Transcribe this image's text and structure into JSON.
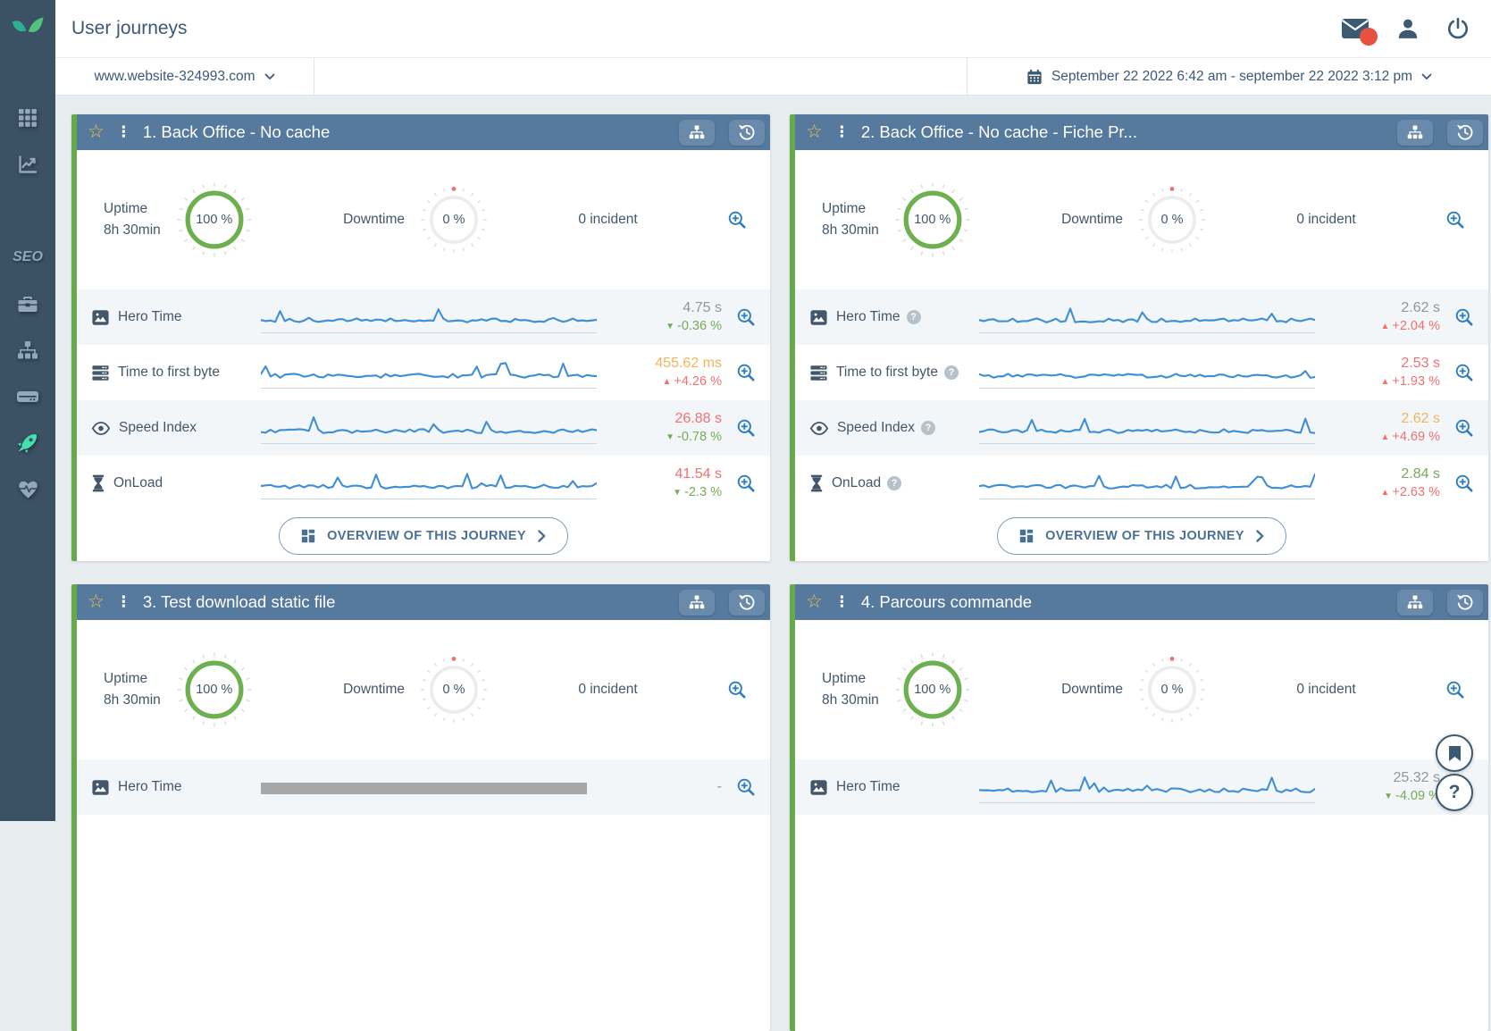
{
  "header": {
    "title": "User journeys",
    "icons": [
      {
        "name": "mail-icon",
        "badge": true
      },
      {
        "name": "user-icon"
      },
      {
        "name": "power-icon"
      }
    ]
  },
  "toolbar": {
    "site_selector": {
      "value": "www.website-324993.com",
      "icon": "chevron-down-icon"
    },
    "date_range": {
      "value": "September 22 2022 6:42 am - september 22 2022 3:12 pm",
      "icon": "calendar-icon"
    }
  },
  "sidebar": {
    "items": [
      {
        "id": "dashboard",
        "icon": "grid-icon"
      },
      {
        "id": "analytics",
        "icon": "line-chart-icon"
      },
      {
        "id": "seo",
        "label": "SEO"
      },
      {
        "id": "tools",
        "icon": "briefcase-icon"
      },
      {
        "id": "pages",
        "icon": "sitemap-icon"
      },
      {
        "id": "server",
        "icon": "server-icon"
      },
      {
        "id": "user-journeys",
        "icon": "rocket-icon",
        "active": true
      },
      {
        "id": "health",
        "icon": "heartbeat-icon"
      }
    ]
  },
  "colors": {
    "accent_green": "#68a94e",
    "card_header_blue": "#56799e",
    "spark_blue": "#3f8fd6",
    "value_gray": "#8f979c",
    "value_orange": "#f2b45c",
    "value_red": "#f17070",
    "value_green": "#74ab58",
    "sidebar_active_teal": "#45e0b0",
    "badge_red": "#e8503f"
  },
  "cards": [
    {
      "title": "1. Back Office - No cache",
      "uptime": {
        "label": "Uptime",
        "duration": "8h 30min",
        "value": "100 %"
      },
      "downtime": {
        "label": "Downtime",
        "value": "0 %"
      },
      "incidents": "0 incident",
      "overview_label": "OVERVIEW OF THIS JOURNEY",
      "metrics": [
        {
          "label": "Hero Time",
          "icon": "image-icon",
          "chart": "line",
          "value": "4.75 s",
          "value_color": "gray",
          "delta_arrow": "▼",
          "delta": "-0.36 %",
          "delta_color": "green"
        },
        {
          "label": "Time to first byte",
          "icon": "server-rows-icon",
          "chart": "line",
          "value": "455.62 ms",
          "value_color": "orange",
          "delta_arrow": "▲",
          "delta": "+4.26 %",
          "delta_color": "red"
        },
        {
          "label": "Speed Index",
          "icon": "eye-icon",
          "chart": "line",
          "value": "26.88 s",
          "value_color": "red",
          "delta_arrow": "▼",
          "delta": "-0.78 %",
          "delta_color": "green"
        },
        {
          "label": "OnLoad",
          "icon": "hourglass-icon",
          "chart": "line",
          "value": "41.54 s",
          "value_color": "red",
          "delta_arrow": "▼",
          "delta": "-2.3 %",
          "delta_color": "green"
        }
      ]
    },
    {
      "title": "2. Back Office - No cache - Fiche Pr...",
      "uptime": {
        "label": "Uptime",
        "duration": "8h 30min",
        "value": "100 %"
      },
      "downtime": {
        "label": "Downtime",
        "value": "0 %"
      },
      "incidents": "0 incident",
      "overview_label": "OVERVIEW OF THIS JOURNEY",
      "metrics": [
        {
          "label": "Hero Time",
          "icon": "image-icon",
          "help": true,
          "chart": "line",
          "value": "2.62 s",
          "value_color": "gray",
          "delta_arrow": "▲",
          "delta": "+2.04 %",
          "delta_color": "red"
        },
        {
          "label": "Time to first byte",
          "icon": "server-rows-icon",
          "help": true,
          "chart": "line",
          "value": "2.53 s",
          "value_color": "red",
          "delta_arrow": "▲",
          "delta": "+1.93 %",
          "delta_color": "red"
        },
        {
          "label": "Speed Index",
          "icon": "eye-icon",
          "help": true,
          "chart": "line",
          "value": "2.62 s",
          "value_color": "orange",
          "delta_arrow": "▲",
          "delta": "+4.69 %",
          "delta_color": "red"
        },
        {
          "label": "OnLoad",
          "icon": "hourglass-icon",
          "help": true,
          "chart": "line",
          "value": "2.84 s",
          "value_color": "green",
          "delta_arrow": "▲",
          "delta": "+2.63 %",
          "delta_color": "red"
        }
      ]
    },
    {
      "title": "3. Test download static file",
      "uptime": {
        "label": "Uptime",
        "duration": "8h 30min",
        "value": "100 %"
      },
      "downtime": {
        "label": "Downtime",
        "value": "0 %"
      },
      "incidents": "0 incident",
      "metrics": [
        {
          "label": "Hero Time",
          "icon": "image-icon",
          "chart": "bar",
          "value": "-",
          "value_color": "gray"
        }
      ]
    },
    {
      "title": "4. Parcours commande",
      "uptime": {
        "label": "Uptime",
        "duration": "8h 30min",
        "value": "100 %"
      },
      "downtime": {
        "label": "Downtime",
        "value": "0 %"
      },
      "incidents": "0 incident",
      "metrics": [
        {
          "label": "Hero Time",
          "icon": "image-icon",
          "chart": "line",
          "value": "25.32 s",
          "value_color": "gray",
          "delta_arrow": "▼",
          "delta": "-4.09 %",
          "delta_color": "green"
        }
      ]
    }
  ],
  "floating": {
    "bookmark_icon": "bookmark-icon",
    "help_label": "?"
  }
}
